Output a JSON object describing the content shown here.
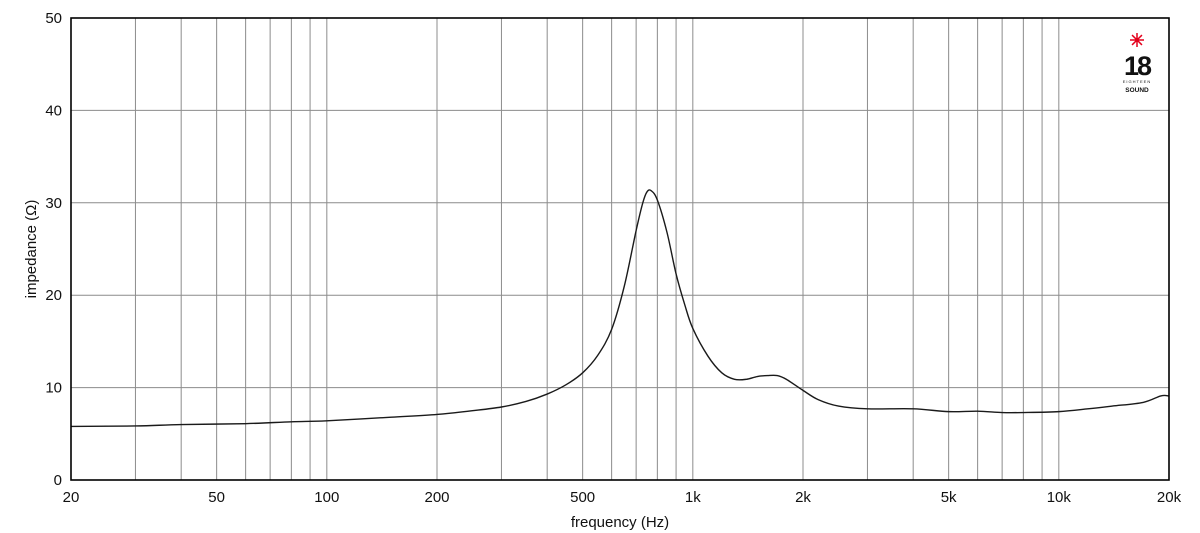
{
  "chart_data": {
    "type": "line",
    "xlabel": "frequency (Hz)",
    "ylabel": "impedance (Ω)",
    "x_scale": "log",
    "xlim": [
      20,
      20000
    ],
    "ylim": [
      0,
      50
    ],
    "grid": true,
    "x_ticks": [
      {
        "value": 20,
        "label": "20"
      },
      {
        "value": 50,
        "label": "50"
      },
      {
        "value": 100,
        "label": "100"
      },
      {
        "value": 200,
        "label": "200"
      },
      {
        "value": 500,
        "label": "500"
      },
      {
        "value": 1000,
        "label": "1k"
      },
      {
        "value": 2000,
        "label": "2k"
      },
      {
        "value": 5000,
        "label": "5k"
      },
      {
        "value": 10000,
        "label": "10k"
      },
      {
        "value": 20000,
        "label": "20k"
      }
    ],
    "y_ticks": [
      0,
      10,
      20,
      30,
      40,
      50
    ],
    "series": [
      {
        "color": "#1a1a1a",
        "points": [
          [
            20,
            5.8
          ],
          [
            30,
            5.85
          ],
          [
            40,
            6.0
          ],
          [
            60,
            6.1
          ],
          [
            80,
            6.3
          ],
          [
            100,
            6.4
          ],
          [
            150,
            6.8
          ],
          [
            200,
            7.1
          ],
          [
            250,
            7.5
          ],
          [
            300,
            7.9
          ],
          [
            350,
            8.5
          ],
          [
            400,
            9.3
          ],
          [
            450,
            10.3
          ],
          [
            500,
            11.6
          ],
          [
            550,
            13.5
          ],
          [
            600,
            16.3
          ],
          [
            650,
            21.0
          ],
          [
            700,
            27.0
          ],
          [
            730,
            30.0
          ],
          [
            750,
            31.2
          ],
          [
            770,
            31.3
          ],
          [
            800,
            30.3
          ],
          [
            850,
            26.8
          ],
          [
            900,
            22.3
          ],
          [
            950,
            19.0
          ],
          [
            1000,
            16.4
          ],
          [
            1100,
            13.4
          ],
          [
            1200,
            11.6
          ],
          [
            1300,
            10.9
          ],
          [
            1400,
            10.9
          ],
          [
            1500,
            11.2
          ],
          [
            1600,
            11.3
          ],
          [
            1700,
            11.3
          ],
          [
            1800,
            10.9
          ],
          [
            2000,
            9.7
          ],
          [
            2200,
            8.7
          ],
          [
            2500,
            8.0
          ],
          [
            3000,
            7.7
          ],
          [
            4000,
            7.7
          ],
          [
            5000,
            7.4
          ],
          [
            6000,
            7.45
          ],
          [
            7000,
            7.3
          ],
          [
            8000,
            7.3
          ],
          [
            10000,
            7.4
          ],
          [
            12000,
            7.7
          ],
          [
            14000,
            8.0
          ],
          [
            17000,
            8.4
          ],
          [
            19000,
            9.1
          ],
          [
            20000,
            9.1
          ]
        ]
      }
    ]
  },
  "logo": {
    "number": "18",
    "line1": "EIGHTEEN",
    "line2": "SOUND",
    "star_color": "#e3001b"
  }
}
